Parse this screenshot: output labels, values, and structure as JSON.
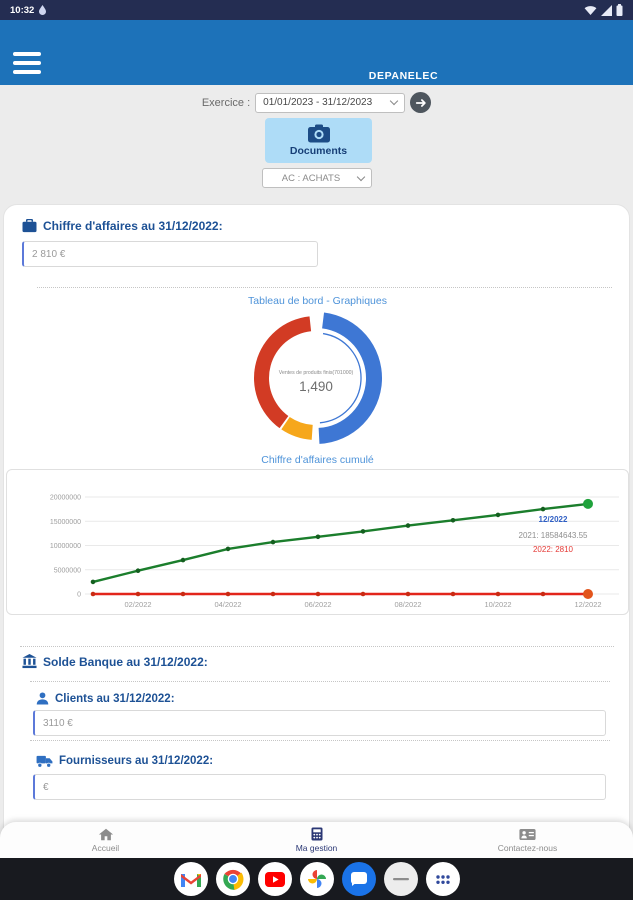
{
  "status_bar": {
    "time": "10:32",
    "icons": [
      "notification-drop-icon",
      "wifi-icon",
      "signal-icon",
      "battery-icon"
    ]
  },
  "header": {
    "title": "DEPANELEC",
    "background": "#1d72b9"
  },
  "filters": {
    "exercice_label": "Exercice :",
    "exercice_value": "01/01/2023 - 31/12/2023",
    "documents_label": "Documents",
    "journal_value": "AC : ACHATS"
  },
  "sections": {
    "chiffre_affaires": {
      "label": "Chiffre d'affaires au 31/12/2022:",
      "value": "2 810 €"
    },
    "dashboard_link": "Tableau de bord - Graphiques",
    "solde_banque_label": "Solde Banque au 31/12/2022:",
    "clients": {
      "label": "Clients au 31/12/2022:",
      "value": "3110 €"
    },
    "fournisseurs": {
      "label": "Fournisseurs au 31/12/2022:",
      "value": "€"
    }
  },
  "chart_data": [
    {
      "type": "pie",
      "style": "donut",
      "center_label": "Ventes de produits finis(701000)",
      "center_value": "1,490",
      "slices": [
        {
          "name": "ventes-produits-finis",
          "color": "#3E77D4",
          "pct": 47.5,
          "start_deg": 7,
          "end_deg": 177,
          "selected": true
        },
        {
          "name": "slice-orange",
          "color": "#F6A71B",
          "pct": 8.3,
          "start_deg": 184,
          "end_deg": 214
        },
        {
          "name": "slice-red",
          "color": "#D23B24",
          "pct": 38.3,
          "start_deg": 216,
          "end_deg": 354
        }
      ]
    },
    {
      "type": "line",
      "title": "Chiffre d'affaires cumulé",
      "x": [
        "01/2022",
        "02/2022",
        "03/2022",
        "04/2022",
        "05/2022",
        "06/2022",
        "07/2022",
        "08/2022",
        "09/2022",
        "10/2022",
        "11/2022",
        "12/2022"
      ],
      "x_tick_labels": [
        "02/2022",
        "04/2022",
        "06/2022",
        "08/2022",
        "10/2022",
        "12/2022"
      ],
      "y_ticks": [
        0,
        5000000,
        10000000,
        15000000,
        20000000
      ],
      "ylim": [
        0,
        20000000
      ],
      "grid": true,
      "series": [
        {
          "name": "2021",
          "color": "#1B7E2C",
          "point_color": "#145F1F",
          "end_color": "#1FA23B",
          "values": [
            2500000,
            4800000,
            7000000,
            9300000,
            10700000,
            11800000,
            12900000,
            14100000,
            15200000,
            16300000,
            17500000,
            18584643.55
          ]
        },
        {
          "name": "2022",
          "color": "#E2251B",
          "point_color": "#C92A12",
          "end_color": "#E2541B",
          "values": [
            0,
            0,
            0,
            0,
            0,
            0,
            0,
            0,
            0,
            0,
            0,
            2810
          ]
        }
      ],
      "tooltip": {
        "title": "12/2022",
        "title_color": "#2F5FC4",
        "lines": [
          {
            "text": "2021: 18584643.55",
            "color": "#8F8F8F"
          },
          {
            "text": "2022: 2810",
            "color": "#E53935"
          }
        ]
      }
    }
  ],
  "bottom_nav": {
    "items": [
      {
        "label": "Accueil",
        "icon": "home-icon",
        "active": false
      },
      {
        "label": "Ma gestion",
        "icon": "calculator-icon",
        "active": true
      },
      {
        "label": "Contactez-nous",
        "icon": "contact-card-icon",
        "active": false
      }
    ]
  },
  "dock": {
    "apps": [
      "gmail",
      "chrome",
      "youtube",
      "google-photos",
      "messages",
      "unknown-app",
      "all-apps-grid"
    ]
  }
}
